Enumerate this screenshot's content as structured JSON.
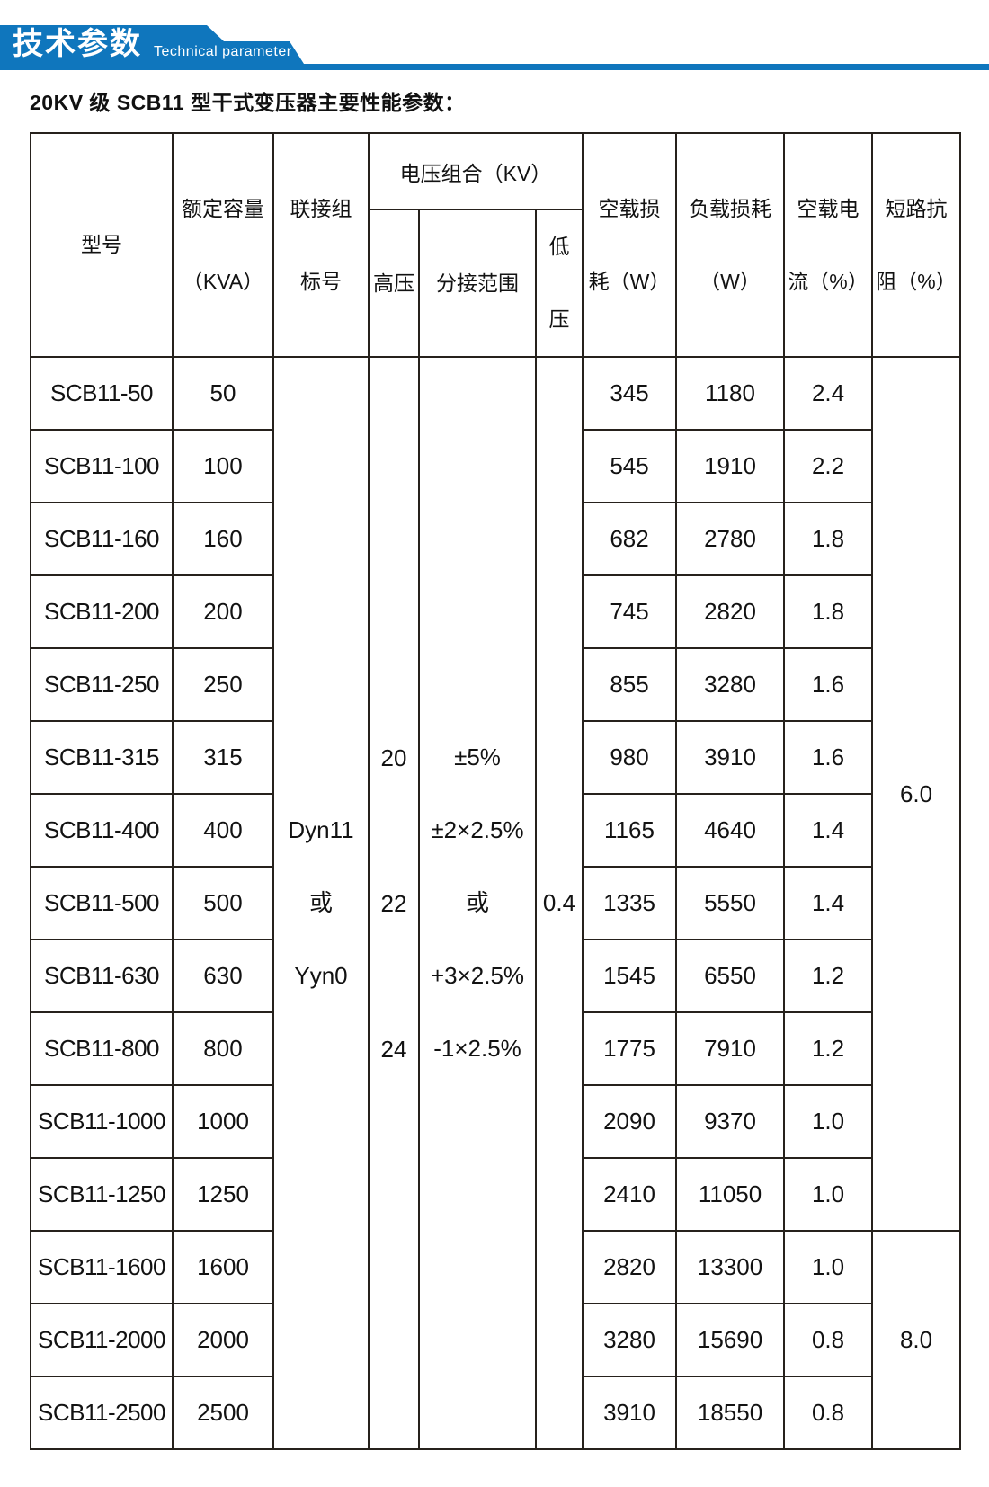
{
  "banner": {
    "title_cn": "技术参数",
    "title_en": "Technical parameter",
    "ribbon_color": "#0f76bd",
    "text_color": "#ffffff"
  },
  "page_title": "20KV 级 SCB11 型干式变压器主要性能参数：",
  "colors": {
    "table_border": "#26211c",
    "text": "#121212",
    "background": "#ffffff"
  },
  "table": {
    "headers": {
      "model": "型号",
      "capacity": "额定容量\n（KVA）",
      "connection": "联接组\n标号",
      "voltage_group": "电压组合（KV）",
      "hv": "高压",
      "tap_range": "分接范围",
      "lv": "低\n压",
      "no_load_loss": "空载损\n耗（W）",
      "load_loss": "负载损耗\n（W）",
      "no_load_current": "空载电\n流（%）",
      "impedance": "短路抗\n阻（%）"
    },
    "merged": {
      "connection": "Dyn11\n或\nYyn0",
      "hv": "20\n22\n24",
      "tap_range": "±5%\n±2×2.5%\n或\n+3×2.5%\n-1×2.5%",
      "lv": "0.4",
      "impedance_top": {
        "value": "6.0",
        "rowspan": 12
      },
      "impedance_bottom": {
        "value": "8.0",
        "rowspan": 3
      }
    },
    "rows": [
      {
        "model": "SCB11-50",
        "capacity": "50",
        "no_load_loss": "345",
        "load_loss": "1180",
        "no_load_current": "2.4"
      },
      {
        "model": "SCB11-100",
        "capacity": "100",
        "no_load_loss": "545",
        "load_loss": "1910",
        "no_load_current": "2.2"
      },
      {
        "model": "SCB11-160",
        "capacity": "160",
        "no_load_loss": "682",
        "load_loss": "2780",
        "no_load_current": "1.8"
      },
      {
        "model": "SCB11-200",
        "capacity": "200",
        "no_load_loss": "745",
        "load_loss": "2820",
        "no_load_current": "1.8"
      },
      {
        "model": "SCB11-250",
        "capacity": "250",
        "no_load_loss": "855",
        "load_loss": "3280",
        "no_load_current": "1.6"
      },
      {
        "model": "SCB11-315",
        "capacity": "315",
        "no_load_loss": "980",
        "load_loss": "3910",
        "no_load_current": "1.6"
      },
      {
        "model": "SCB11-400",
        "capacity": "400",
        "no_load_loss": "1165",
        "load_loss": "4640",
        "no_load_current": "1.4"
      },
      {
        "model": "SCB11-500",
        "capacity": "500",
        "no_load_loss": "1335",
        "load_loss": "5550",
        "no_load_current": "1.4"
      },
      {
        "model": "SCB11-630",
        "capacity": "630",
        "no_load_loss": "1545",
        "load_loss": "6550",
        "no_load_current": "1.2"
      },
      {
        "model": "SCB11-800",
        "capacity": "800",
        "no_load_loss": "1775",
        "load_loss": "7910",
        "no_load_current": "1.2"
      },
      {
        "model": "SCB11-1000",
        "capacity": "1000",
        "no_load_loss": "2090",
        "load_loss": "9370",
        "no_load_current": "1.0"
      },
      {
        "model": "SCB11-1250",
        "capacity": "1250",
        "no_load_loss": "2410",
        "load_loss": "11050",
        "no_load_current": "1.0"
      },
      {
        "model": "SCB11-1600",
        "capacity": "1600",
        "no_load_loss": "2820",
        "load_loss": "13300",
        "no_load_current": "1.0"
      },
      {
        "model": "SCB11-2000",
        "capacity": "2000",
        "no_load_loss": "3280",
        "load_loss": "15690",
        "no_load_current": "0.8"
      },
      {
        "model": "SCB11-2500",
        "capacity": "2500",
        "no_load_loss": "3910",
        "load_loss": "18550",
        "no_load_current": "0.8"
      }
    ]
  }
}
